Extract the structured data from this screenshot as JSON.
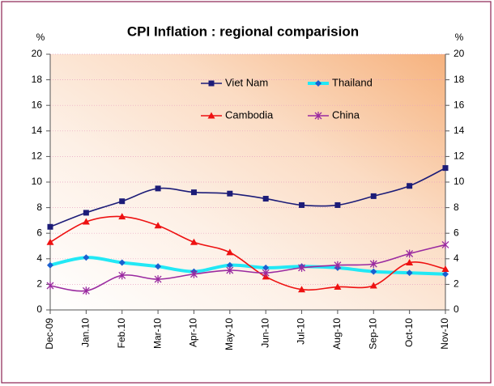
{
  "chart_data": {
    "type": "line",
    "title": "CPI Inflation : regional comparision",
    "y_label": "%",
    "y2_label": "%",
    "categories": [
      "Dec-09",
      "Jan.10",
      "Feb.10",
      "Mar-10",
      "Apr-10",
      "May-10",
      "Jun-10",
      "Jul-10",
      "Aug-10",
      "Sep-10",
      "Oct-10",
      "Nov-10"
    ],
    "series": [
      {
        "name": "Viet Nam",
        "color": "#1c1c78",
        "marker": "square",
        "marker_color": "#1c1c78",
        "values": [
          6.5,
          7.6,
          8.5,
          9.5,
          9.2,
          9.1,
          8.7,
          8.2,
          8.2,
          8.9,
          9.7,
          11.1
        ]
      },
      {
        "name": "Thailand",
        "color": "#22e8f5",
        "marker": "diamond",
        "marker_color": "#1a5fd0",
        "values": [
          3.5,
          4.1,
          3.7,
          3.4,
          3.0,
          3.5,
          3.3,
          3.4,
          3.3,
          3.0,
          2.9,
          2.8
        ]
      },
      {
        "name": "Cambodia",
        "color": "#ee1111",
        "marker": "triangle",
        "marker_color": "#ee1111",
        "values": [
          5.3,
          6.9,
          7.3,
          6.6,
          5.3,
          4.5,
          2.6,
          1.6,
          1.8,
          1.9,
          3.7,
          3.2
        ]
      },
      {
        "name": "China",
        "color": "#9a2aa0",
        "marker": "star",
        "marker_color": "#9a2aa0",
        "values": [
          1.9,
          1.5,
          2.7,
          2.4,
          2.8,
          3.1,
          2.9,
          3.3,
          3.5,
          3.6,
          4.4,
          5.1
        ]
      }
    ],
    "ylim": [
      0,
      20
    ],
    "yticks": [
      0,
      2,
      4,
      6,
      8,
      10,
      12,
      14,
      16,
      18,
      20
    ],
    "y2lim": [
      0,
      20
    ],
    "y2ticks": [
      0,
      2,
      4,
      6,
      8,
      10,
      12,
      14,
      16,
      18,
      20
    ],
    "grid": true,
    "smooth": true,
    "legend": "top"
  }
}
